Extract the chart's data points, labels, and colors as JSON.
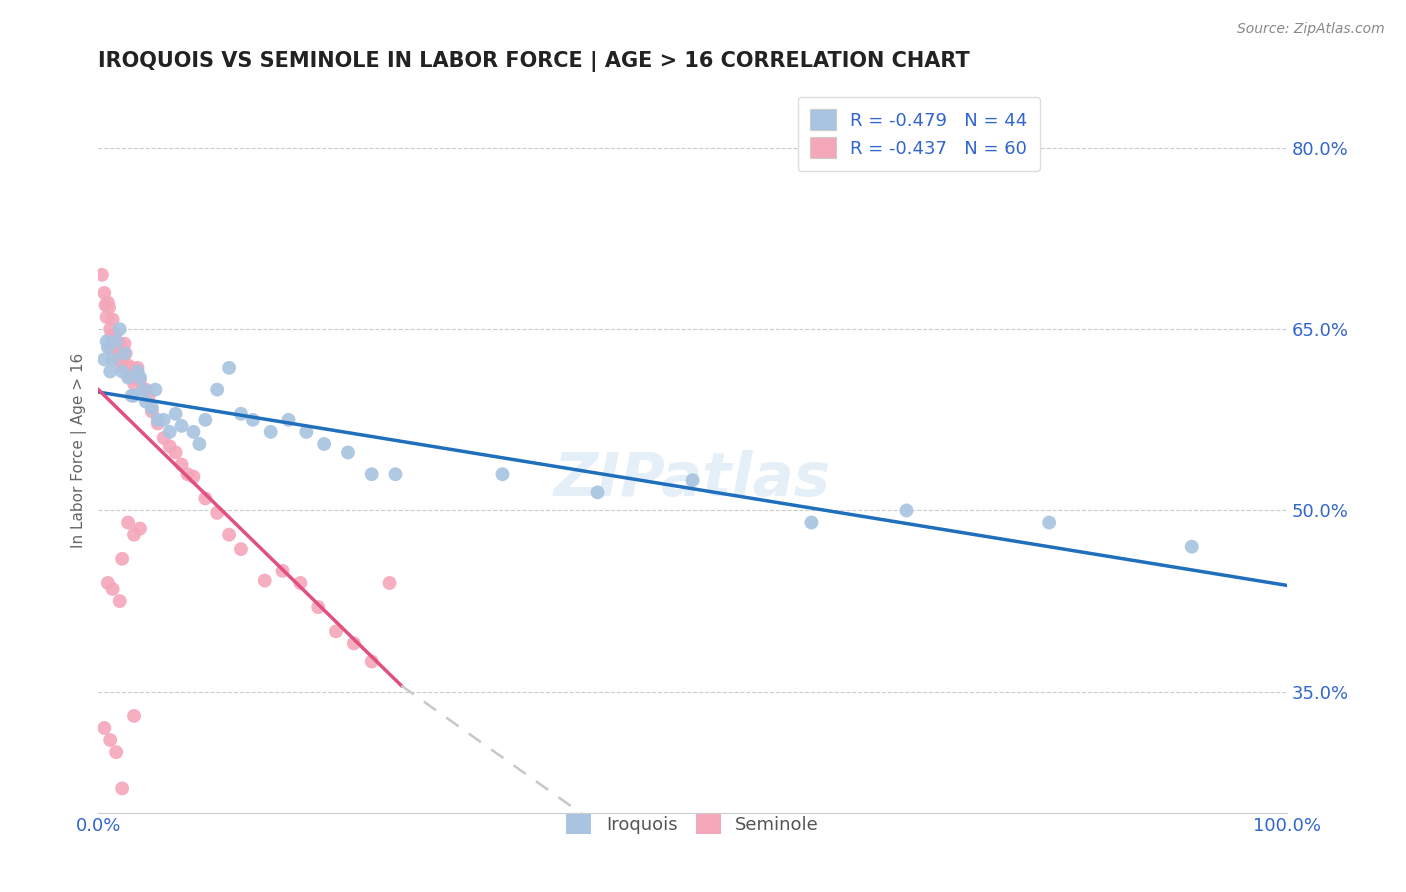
{
  "title": "IROQUOIS VS SEMINOLE IN LABOR FORCE | AGE > 16 CORRELATION CHART",
  "source_text": "Source: ZipAtlas.com",
  "ylabel": "In Labor Force | Age > 16",
  "xlim": [
    0.0,
    1.0
  ],
  "ylim": [
    0.25,
    0.85
  ],
  "yticks": [
    0.35,
    0.5,
    0.65,
    0.8
  ],
  "ytick_labels": [
    "35.0%",
    "50.0%",
    "65.0%",
    "80.0%"
  ],
  "xticks": [
    0.0,
    1.0
  ],
  "xtick_labels": [
    "0.0%",
    "100.0%"
  ],
  "legend_iroquois": "R = -0.479   N = 44",
  "legend_seminole": "R = -0.437   N = 60",
  "iroquois_color": "#a8c4e0",
  "seminole_color": "#f4a7b9",
  "iroquois_line_color": "#1f6fbd",
  "seminole_line_color": "#e05080",
  "seminole_dashed_color": "#c8c8c8",
  "watermark": "ZIPatlas",
  "iroquois_line": [
    0.0,
    0.598,
    1.0,
    0.438
  ],
  "seminole_line_solid": [
    0.0,
    0.6,
    0.255,
    0.355
  ],
  "seminole_line_dashed": [
    0.255,
    0.355,
    0.57,
    0.135
  ],
  "iroquois_x": [
    0.005,
    0.007,
    0.008,
    0.01,
    0.012,
    0.015,
    0.018,
    0.02,
    0.022,
    0.025,
    0.028,
    0.03,
    0.033,
    0.035,
    0.038,
    0.04,
    0.045,
    0.048,
    0.05,
    0.055,
    0.06,
    0.065,
    0.07,
    0.08,
    0.085,
    0.09,
    0.1,
    0.11,
    0.12,
    0.13,
    0.145,
    0.16,
    0.175,
    0.19,
    0.21,
    0.23,
    0.25,
    0.34,
    0.42,
    0.5,
    0.6,
    0.68,
    0.8,
    0.92
  ],
  "iroquois_y": [
    0.625,
    0.64,
    0.635,
    0.615,
    0.625,
    0.64,
    0.65,
    0.615,
    0.63,
    0.61,
    0.595,
    0.595,
    0.615,
    0.61,
    0.6,
    0.59,
    0.585,
    0.6,
    0.575,
    0.575,
    0.565,
    0.58,
    0.57,
    0.565,
    0.555,
    0.575,
    0.6,
    0.618,
    0.58,
    0.575,
    0.565,
    0.575,
    0.565,
    0.555,
    0.548,
    0.53,
    0.53,
    0.53,
    0.515,
    0.525,
    0.49,
    0.5,
    0.49,
    0.47
  ],
  "seminole_x": [
    0.003,
    0.005,
    0.006,
    0.007,
    0.008,
    0.009,
    0.01,
    0.01,
    0.011,
    0.012,
    0.013,
    0.014,
    0.015,
    0.016,
    0.017,
    0.018,
    0.019,
    0.02,
    0.022,
    0.023,
    0.025,
    0.027,
    0.028,
    0.03,
    0.033,
    0.035,
    0.04,
    0.042,
    0.045,
    0.05,
    0.055,
    0.06,
    0.065,
    0.07,
    0.075,
    0.08,
    0.09,
    0.1,
    0.11,
    0.12,
    0.14,
    0.155,
    0.17,
    0.185,
    0.2,
    0.215,
    0.23,
    0.245,
    0.005,
    0.01,
    0.015,
    0.02,
    0.03,
    0.008,
    0.012,
    0.018,
    0.025,
    0.035,
    0.03,
    0.02
  ],
  "seminole_y": [
    0.695,
    0.68,
    0.67,
    0.66,
    0.672,
    0.668,
    0.635,
    0.65,
    0.645,
    0.658,
    0.64,
    0.645,
    0.638,
    0.633,
    0.625,
    0.638,
    0.63,
    0.62,
    0.638,
    0.63,
    0.62,
    0.61,
    0.618,
    0.605,
    0.618,
    0.608,
    0.6,
    0.593,
    0.582,
    0.572,
    0.56,
    0.553,
    0.548,
    0.538,
    0.53,
    0.528,
    0.51,
    0.498,
    0.48,
    0.468,
    0.442,
    0.45,
    0.44,
    0.42,
    0.4,
    0.39,
    0.375,
    0.44,
    0.32,
    0.31,
    0.3,
    0.27,
    0.33,
    0.44,
    0.435,
    0.425,
    0.49,
    0.485,
    0.48,
    0.46
  ]
}
